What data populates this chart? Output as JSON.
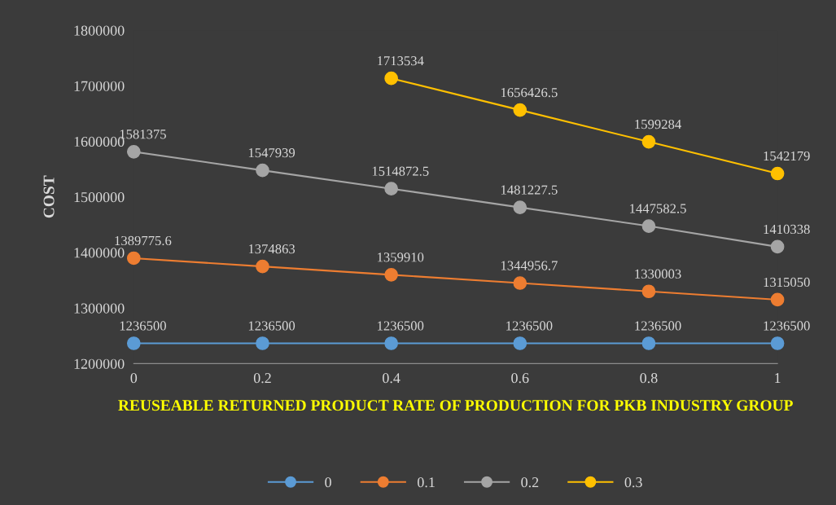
{
  "chart_data": {
    "type": "line",
    "xlabel": "REUSEABLE RETURNED PRODUCT RATE OF PRODUCTION FOR PKB INDUSTRY GROUP",
    "ylabel": "COST",
    "x": [
      0,
      0.2,
      0.4,
      0.6,
      0.8,
      1
    ],
    "series": [
      {
        "name": "0",
        "color": "#5b9bd5",
        "values": [
          1236500,
          1236500,
          1236500,
          1236500,
          1236500,
          1236500
        ]
      },
      {
        "name": "0.1",
        "color": "#ed7d31",
        "values": [
          1389775.6,
          1374863,
          1359910,
          1344956.7,
          1330003,
          1315050
        ]
      },
      {
        "name": "0.2",
        "color": "#a5a5a5",
        "values": [
          1581375,
          1547939,
          1514872.5,
          1481227.5,
          1447582.5,
          1410338
        ]
      },
      {
        "name": "0.3",
        "color": "#ffc000",
        "values": [
          null,
          null,
          1713534,
          1656426.5,
          1599284,
          1542179
        ]
      }
    ],
    "xlim": [
      0,
      1
    ],
    "xticks": [
      0,
      0.2,
      0.4,
      0.6,
      0.8,
      1
    ],
    "ylim": [
      1200000,
      1800000
    ],
    "yticks": [
      1200000,
      1300000,
      1400000,
      1500000,
      1600000,
      1700000,
      1800000
    ],
    "data_labels": true,
    "marker": "circle",
    "line_style": "solid",
    "grid": false,
    "legend": "bottom"
  }
}
